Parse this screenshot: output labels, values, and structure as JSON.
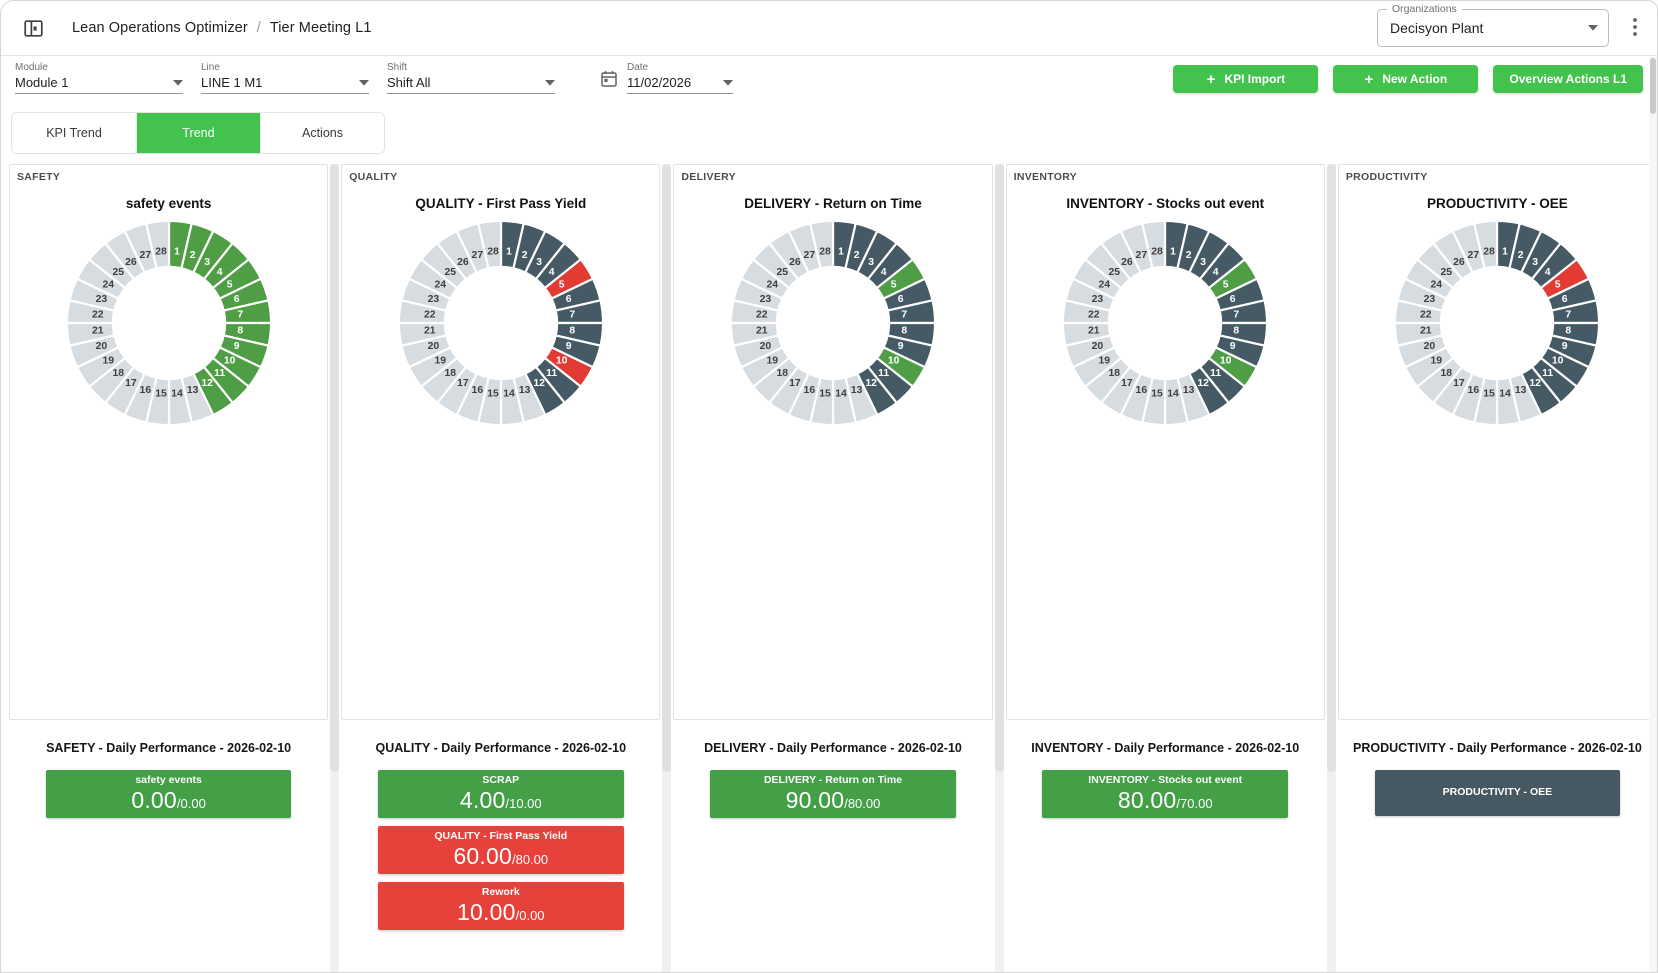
{
  "app": {
    "breadcrumb": {
      "root": "Lean Operations Optimizer",
      "separator": "/",
      "current": "Tier Meeting L1"
    },
    "organizations": {
      "label": "Organizations",
      "value": "Decisyon Plant"
    }
  },
  "filters": {
    "module": {
      "label": "Module",
      "value": "Module 1"
    },
    "line": {
      "label": "Line",
      "value": "LINE 1 M1"
    },
    "shift": {
      "label": "Shift",
      "value": "Shift All"
    },
    "date": {
      "label": "Date",
      "value": "11/02/2026"
    }
  },
  "action_buttons": [
    {
      "plus": "+",
      "label": "KPI Import"
    },
    {
      "plus": "+",
      "label": "New Action"
    },
    {
      "plus": "",
      "label": "Overview Actions L1"
    }
  ],
  "tabs": [
    {
      "label": "KPI Trend",
      "active": false
    },
    {
      "label": "Trend",
      "active": true
    },
    {
      "label": "Actions",
      "active": false
    }
  ],
  "palette": {
    "green": "#4f9d45",
    "dark": "#455a64",
    "red": "#e23b33",
    "none": "#d7dce1",
    "label_on_color": "#ffffff",
    "label_on_none": "#3f3f3f",
    "card_green": "#43a047",
    "card_red": "#e7413c",
    "card_slate": "#465963",
    "accent_button_green": "#43c24e"
  },
  "columns": [
    {
      "header": "SAFETY",
      "chart_title": "safety events",
      "daily_heading": "SAFETY - Daily Performance - 2026-02-10",
      "cards": [
        {
          "label": "safety events",
          "value": "0.00",
          "target": "/0.00",
          "status": "green"
        }
      ]
    },
    {
      "header": "QUALITY",
      "chart_title": "QUALITY - First Pass Yield",
      "daily_heading": "QUALITY - Daily Performance - 2026-02-10",
      "cards": [
        {
          "label": "SCRAP",
          "value": "4.00",
          "target": "/10.00",
          "status": "green"
        },
        {
          "label": "QUALITY - First Pass Yield",
          "value": "60.00",
          "target": "/80.00",
          "status": "red"
        },
        {
          "label": "Rework",
          "value": "10.00",
          "target": "/0.00",
          "status": "red"
        }
      ]
    },
    {
      "header": "DELIVERY",
      "chart_title": "DELIVERY - Return on Time",
      "daily_heading": "DELIVERY - Daily Performance - 2026-02-10",
      "cards": [
        {
          "label": "DELIVERY - Return on Time",
          "value": "90.00",
          "target": "/80.00",
          "status": "green"
        }
      ]
    },
    {
      "header": "INVENTORY",
      "chart_title": "INVENTORY - Stocks out event",
      "daily_heading": "INVENTORY - Daily Performance - 2026-02-10",
      "cards": [
        {
          "label": "INVENTORY - Stocks out event",
          "value": "80.00",
          "target": "/70.00",
          "status": "green"
        }
      ]
    },
    {
      "header": "PRODUCTIVITY",
      "chart_title": "PRODUCTIVITY - OEE",
      "daily_heading": "PRODUCTIVITY - Daily Performance - 2026-02-10",
      "cards": [
        {
          "label": "PRODUCTIVITY - OEE",
          "value": null,
          "target": null,
          "status": "slate"
        }
      ]
    }
  ],
  "chart_data": [
    {
      "type": "donut",
      "title": "safety events",
      "days": 28,
      "hole_ratio": 0.55,
      "categories": [
        1,
        2,
        3,
        4,
        5,
        6,
        7,
        8,
        9,
        10,
        11,
        12,
        13,
        14,
        15,
        16,
        17,
        18,
        19,
        20,
        21,
        22,
        23,
        24,
        25,
        26,
        27,
        28
      ],
      "statuses": [
        "green",
        "green",
        "green",
        "green",
        "green",
        "green",
        "green",
        "green",
        "green",
        "green",
        "green",
        "green",
        "none",
        "none",
        "none",
        "none",
        "none",
        "none",
        "none",
        "none",
        "none",
        "none",
        "none",
        "none",
        "none",
        "none",
        "none",
        "none"
      ]
    },
    {
      "type": "donut",
      "title": "QUALITY - First Pass Yield",
      "days": 28,
      "hole_ratio": 0.55,
      "categories": [
        1,
        2,
        3,
        4,
        5,
        6,
        7,
        8,
        9,
        10,
        11,
        12,
        13,
        14,
        15,
        16,
        17,
        18,
        19,
        20,
        21,
        22,
        23,
        24,
        25,
        26,
        27,
        28
      ],
      "statuses": [
        "dark",
        "dark",
        "dark",
        "dark",
        "red",
        "dark",
        "dark",
        "dark",
        "dark",
        "red",
        "dark",
        "dark",
        "none",
        "none",
        "none",
        "none",
        "none",
        "none",
        "none",
        "none",
        "none",
        "none",
        "none",
        "none",
        "none",
        "none",
        "none",
        "none"
      ]
    },
    {
      "type": "donut",
      "title": "DELIVERY - Return on Time",
      "days": 28,
      "hole_ratio": 0.55,
      "categories": [
        1,
        2,
        3,
        4,
        5,
        6,
        7,
        8,
        9,
        10,
        11,
        12,
        13,
        14,
        15,
        16,
        17,
        18,
        19,
        20,
        21,
        22,
        23,
        24,
        25,
        26,
        27,
        28
      ],
      "statuses": [
        "dark",
        "dark",
        "dark",
        "dark",
        "green",
        "dark",
        "dark",
        "dark",
        "dark",
        "green",
        "dark",
        "dark",
        "none",
        "none",
        "none",
        "none",
        "none",
        "none",
        "none",
        "none",
        "none",
        "none",
        "none",
        "none",
        "none",
        "none",
        "none",
        "none"
      ]
    },
    {
      "type": "donut",
      "title": "INVENTORY - Stocks out event",
      "days": 28,
      "hole_ratio": 0.55,
      "categories": [
        1,
        2,
        3,
        4,
        5,
        6,
        7,
        8,
        9,
        10,
        11,
        12,
        13,
        14,
        15,
        16,
        17,
        18,
        19,
        20,
        21,
        22,
        23,
        24,
        25,
        26,
        27,
        28
      ],
      "statuses": [
        "dark",
        "dark",
        "dark",
        "dark",
        "green",
        "dark",
        "dark",
        "dark",
        "dark",
        "green",
        "dark",
        "dark",
        "none",
        "none",
        "none",
        "none",
        "none",
        "none",
        "none",
        "none",
        "none",
        "none",
        "none",
        "none",
        "none",
        "none",
        "none",
        "none"
      ]
    },
    {
      "type": "donut",
      "title": "PRODUCTIVITY - OEE",
      "days": 28,
      "hole_ratio": 0.55,
      "categories": [
        1,
        2,
        3,
        4,
        5,
        6,
        7,
        8,
        9,
        10,
        11,
        12,
        13,
        14,
        15,
        16,
        17,
        18,
        19,
        20,
        21,
        22,
        23,
        24,
        25,
        26,
        27,
        28
      ],
      "statuses": [
        "dark",
        "dark",
        "dark",
        "dark",
        "red",
        "dark",
        "dark",
        "dark",
        "dark",
        "dark",
        "dark",
        "dark",
        "none",
        "none",
        "none",
        "none",
        "none",
        "none",
        "none",
        "none",
        "none",
        "none",
        "none",
        "none",
        "none",
        "none",
        "none",
        "none"
      ]
    }
  ]
}
